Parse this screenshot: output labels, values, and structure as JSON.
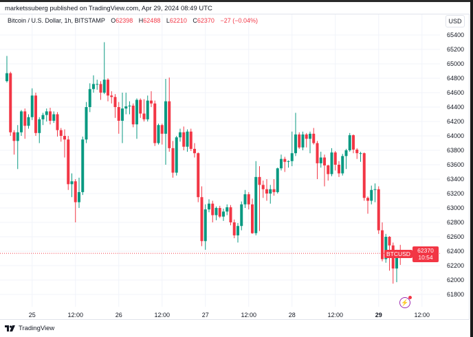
{
  "header": {
    "published": "marketssuberg published on TradingView.com, Apr 29, 2024 08:49 UTC"
  },
  "legend": {
    "symbol": "Bitcoin / U.S. Dollar, 1h, BITSTAMP",
    "o_label": "O",
    "o": "62398",
    "h_label": "H",
    "h": "62488",
    "l_label": "L",
    "l": "62210",
    "c_label": "C",
    "c": "62370",
    "change": "−27 (−0.04%)"
  },
  "currency_button": "USD",
  "price_tag": {
    "symbol": "BTCUSD",
    "price": "62370",
    "countdown": "10:54"
  },
  "footer": {
    "brand": "TradingView"
  },
  "colors": {
    "up": "#089981",
    "down": "#f23645",
    "grid": "#f0f3fa",
    "alert": "#9c27b0"
  },
  "chart_data": {
    "type": "candlestick",
    "interval": "1h",
    "ylim": [
      61700,
      65500
    ],
    "price_ticks": [
      65400,
      65200,
      65000,
      64800,
      64600,
      64400,
      64200,
      64000,
      63800,
      63600,
      63400,
      63200,
      63000,
      62800,
      62600,
      62400,
      62200,
      62000,
      61800
    ],
    "time_ticks": [
      {
        "label": "25",
        "bold": false,
        "index": 7
      },
      {
        "label": "12:00",
        "bold": false,
        "index": 19
      },
      {
        "label": "26",
        "bold": false,
        "index": 31
      },
      {
        "label": "12:00",
        "bold": false,
        "index": 43
      },
      {
        "label": "27",
        "bold": false,
        "index": 55
      },
      {
        "label": "12:00",
        "bold": false,
        "index": 67
      },
      {
        "label": "28",
        "bold": false,
        "index": 79
      },
      {
        "label": "12:00",
        "bold": false,
        "index": 91
      },
      {
        "label": "29",
        "bold": true,
        "index": 103
      },
      {
        "label": "12:00",
        "bold": false,
        "index": 115
      }
    ],
    "last_price": 62370,
    "candles_ohlc": [
      [
        64760,
        65110,
        64740,
        64870
      ],
      [
        64870,
        64890,
        64000,
        64050
      ],
      [
        64050,
        64080,
        63740,
        63930
      ],
      [
        63930,
        64150,
        63540,
        64050
      ],
      [
        64050,
        64360,
        64000,
        64340
      ],
      [
        64340,
        64380,
        63960,
        64140
      ],
      [
        64140,
        64300,
        64100,
        64260
      ],
      [
        64260,
        64660,
        64220,
        64560
      ],
      [
        64560,
        64600,
        64000,
        64040
      ],
      [
        64040,
        64260,
        63900,
        64230
      ],
      [
        64230,
        64320,
        64150,
        64290
      ],
      [
        64290,
        64380,
        64200,
        64340
      ],
      [
        64340,
        64390,
        64160,
        64210
      ],
      [
        64210,
        64340,
        64180,
        64300
      ],
      [
        64300,
        64330,
        63990,
        64080
      ],
      [
        64080,
        64110,
        63920,
        64000
      ],
      [
        64000,
        64090,
        63700,
        63950
      ],
      [
        63950,
        64000,
        63250,
        63330
      ],
      [
        63330,
        63480,
        63150,
        63370
      ],
      [
        63370,
        63400,
        62800,
        63080
      ],
      [
        63080,
        63420,
        63000,
        63220
      ],
      [
        63220,
        63990,
        63180,
        63950
      ],
      [
        63950,
        64470,
        63900,
        64400
      ],
      [
        64400,
        64730,
        64330,
        64650
      ],
      [
        64650,
        64840,
        64600,
        64720
      ],
      [
        64720,
        64780,
        64640,
        64720
      ],
      [
        64720,
        64760,
        64500,
        64600
      ],
      [
        64600,
        65300,
        64580,
        64780
      ],
      [
        64780,
        64800,
        64480,
        64560
      ],
      [
        64560,
        64620,
        64450,
        64540
      ],
      [
        64540,
        64580,
        64250,
        64400
      ],
      [
        64400,
        64470,
        64030,
        64210
      ],
      [
        64210,
        64600,
        63900,
        64380
      ],
      [
        64380,
        64600,
        64300,
        64410
      ],
      [
        64410,
        64480,
        64300,
        64420
      ],
      [
        64420,
        64450,
        64120,
        64160
      ],
      [
        64160,
        64520,
        63960,
        64500
      ],
      [
        64500,
        64520,
        64250,
        64310
      ],
      [
        64310,
        64510,
        64200,
        64230
      ],
      [
        64230,
        64560,
        64200,
        64490
      ],
      [
        64490,
        64620,
        64400,
        64450
      ],
      [
        64450,
        64490,
        63860,
        63900
      ],
      [
        63900,
        64170,
        63880,
        64150
      ],
      [
        64150,
        64170,
        63880,
        64030
      ],
      [
        64030,
        64790,
        63600,
        64480
      ],
      [
        64480,
        64810,
        63780,
        63830
      ],
      [
        63830,
        63930,
        63420,
        63490
      ],
      [
        63490,
        64000,
        63450,
        63980
      ],
      [
        63980,
        64100,
        63920,
        64050
      ],
      [
        64050,
        64130,
        63800,
        63850
      ],
      [
        63850,
        64090,
        63780,
        64060
      ],
      [
        64060,
        64100,
        63790,
        63820
      ],
      [
        63820,
        63900,
        63700,
        63760
      ],
      [
        63760,
        63770,
        63080,
        63150
      ],
      [
        63150,
        63300,
        62470,
        62540
      ],
      [
        62540,
        63050,
        62420,
        62980
      ],
      [
        62980,
        63120,
        62940,
        63060
      ],
      [
        63060,
        63100,
        62800,
        62900
      ],
      [
        62900,
        63020,
        62830,
        63000
      ],
      [
        63000,
        63030,
        62860,
        62880
      ],
      [
        62880,
        62990,
        62820,
        62950
      ],
      [
        62950,
        63050,
        62900,
        63010
      ],
      [
        63010,
        63040,
        62760,
        62800
      ],
      [
        62800,
        62840,
        62580,
        62620
      ],
      [
        62620,
        62790,
        62520,
        62750
      ],
      [
        62750,
        63090,
        62690,
        63050
      ],
      [
        63050,
        63250,
        63000,
        63190
      ],
      [
        63190,
        63220,
        62980,
        63050
      ],
      [
        63050,
        63130,
        62640,
        62650
      ],
      [
        62650,
        63650,
        62620,
        63430
      ],
      [
        63430,
        63580,
        62680,
        63320
      ],
      [
        63320,
        63380,
        63140,
        63260
      ],
      [
        63260,
        63400,
        63100,
        63200
      ],
      [
        63200,
        63320,
        63060,
        63260
      ],
      [
        63260,
        63400,
        63170,
        63220
      ],
      [
        63220,
        63560,
        63200,
        63550
      ],
      [
        63550,
        63740,
        63520,
        63680
      ],
      [
        63680,
        63710,
        63500,
        63640
      ],
      [
        63640,
        63660,
        63560,
        63650
      ],
      [
        63650,
        64060,
        63580,
        63760
      ],
      [
        63760,
        64320,
        63720,
        64020
      ],
      [
        64020,
        64050,
        63820,
        63840
      ],
      [
        63840,
        64060,
        63800,
        64020
      ],
      [
        64020,
        64040,
        63840,
        63960
      ],
      [
        63960,
        64060,
        63760,
        64030
      ],
      [
        64030,
        64110,
        63880,
        63900
      ],
      [
        63900,
        63930,
        63400,
        63620
      ],
      [
        63620,
        63780,
        63560,
        63700
      ],
      [
        63700,
        63740,
        63300,
        63590
      ],
      [
        63590,
        63600,
        63380,
        63470
      ],
      [
        63470,
        63830,
        63440,
        63770
      ],
      [
        63770,
        63790,
        63520,
        63600
      ],
      [
        63600,
        63650,
        63430,
        63480
      ],
      [
        63480,
        63750,
        63450,
        63720
      ],
      [
        63720,
        63820,
        63540,
        63800
      ],
      [
        63800,
        64040,
        63780,
        64010
      ],
      [
        64010,
        64020,
        63760,
        63810
      ],
      [
        63810,
        63830,
        63680,
        63760
      ],
      [
        63760,
        63780,
        63640,
        63760
      ],
      [
        63760,
        63770,
        63100,
        63140
      ],
      [
        63140,
        63160,
        62920,
        63100
      ],
      [
        63100,
        63310,
        63050,
        63250
      ],
      [
        63250,
        63340,
        63080,
        63260
      ],
      [
        63260,
        63300,
        62640,
        62690
      ],
      [
        62690,
        62800,
        62260,
        62290
      ],
      [
        62290,
        62640,
        62240,
        62600
      ],
      [
        62600,
        62610,
        62130,
        62480
      ],
      [
        62480,
        62520,
        61950,
        62160
      ],
      [
        62160,
        62420,
        61970,
        62400
      ],
      [
        62398,
        62488,
        62210,
        62370
      ]
    ]
  }
}
